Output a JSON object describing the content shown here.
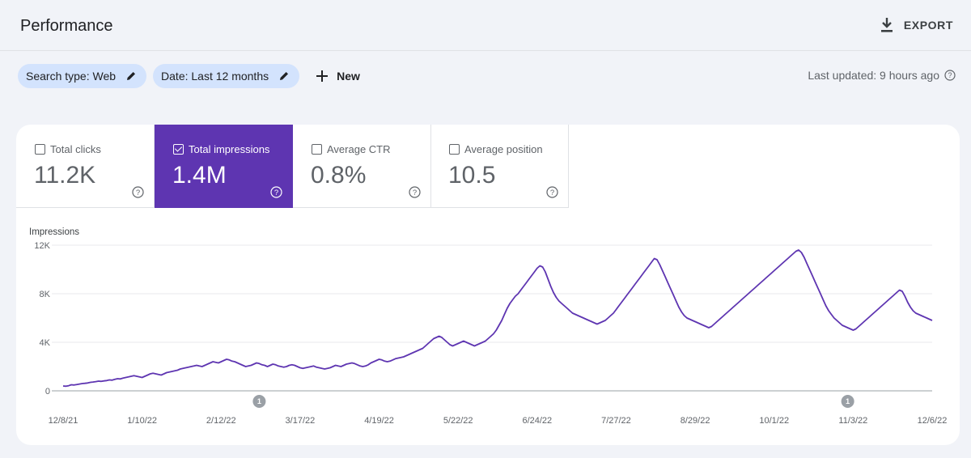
{
  "header": {
    "title": "Performance",
    "export_label": "EXPORT"
  },
  "filters": {
    "search_type": "Search type: Web",
    "date": "Date: Last 12 months",
    "new_label": "New"
  },
  "last_updated": "Last updated: 9 hours ago",
  "metrics": [
    {
      "label": "Total clicks",
      "value": "11.2K",
      "checked": false
    },
    {
      "label": "Total impressions",
      "value": "1.4M",
      "checked": true
    },
    {
      "label": "Average CTR",
      "value": "0.8%",
      "checked": false
    },
    {
      "label": "Average position",
      "value": "10.5",
      "checked": false
    }
  ],
  "colors": {
    "accent": "#5e35b1",
    "chip_bg": "#d3e3fd",
    "annotation": "#9aa0a6"
  },
  "chart_data": {
    "type": "line",
    "ylabel": "Impressions",
    "ylim": [
      0,
      12000
    ],
    "yticks": [
      "0",
      "4K",
      "8K",
      "12K"
    ],
    "xticks": [
      "12/8/21",
      "1/10/22",
      "2/12/22",
      "3/17/22",
      "4/19/22",
      "5/22/22",
      "6/24/22",
      "7/27/22",
      "8/29/22",
      "10/1/22",
      "11/3/22",
      "12/6/22"
    ],
    "annotations": [
      {
        "label": "1",
        "x_day": 72
      },
      {
        "label": "1",
        "x_day": 288
      }
    ],
    "series": [
      {
        "values": [
          400,
          380,
          420,
          500,
          480,
          520,
          560,
          600,
          620,
          650,
          700,
          730,
          760,
          800,
          780,
          820,
          850,
          900,
          880,
          950,
          1000,
          980,
          1050,
          1100,
          1150,
          1200,
          1250,
          1200,
          1150,
          1100,
          1200,
          1300,
          1400,
          1450,
          1400,
          1350,
          1300,
          1400,
          1500,
          1550,
          1600,
          1650,
          1700,
          1800,
          1850,
          1900,
          1950,
          2000,
          2050,
          2100,
          2050,
          2000,
          2100,
          2200,
          2300,
          2400,
          2350,
          2300,
          2400,
          2500,
          2600,
          2550,
          2450,
          2400,
          2300,
          2200,
          2100,
          2000,
          2050,
          2100,
          2200,
          2300,
          2250,
          2150,
          2100,
          2000,
          2100,
          2200,
          2150,
          2050,
          2000,
          1950,
          2000,
          2100,
          2150,
          2100,
          2000,
          1900,
          1850,
          1900,
          1950,
          2000,
          2050,
          1950,
          1900,
          1850,
          1800,
          1850,
          1900,
          2000,
          2100,
          2050,
          2000,
          2100,
          2200,
          2250,
          2300,
          2250,
          2150,
          2050,
          2000,
          2050,
          2150,
          2300,
          2400,
          2500,
          2600,
          2550,
          2450,
          2400,
          2450,
          2550,
          2650,
          2700,
          2750,
          2800,
          2900,
          3000,
          3100,
          3200,
          3300,
          3400,
          3500,
          3700,
          3900,
          4100,
          4300,
          4400,
          4500,
          4400,
          4200,
          4000,
          3800,
          3700,
          3800,
          3900,
          4000,
          4100,
          4000,
          3900,
          3800,
          3700,
          3800,
          3900,
          4000,
          4100,
          4300,
          4500,
          4700,
          5000,
          5400,
          5800,
          6300,
          6800,
          7200,
          7500,
          7800,
          8000,
          8300,
          8600,
          8900,
          9200,
          9500,
          9800,
          10100,
          10300,
          10200,
          9800,
          9200,
          8600,
          8100,
          7700,
          7400,
          7200,
          7000,
          6800,
          6600,
          6400,
          6300,
          6200,
          6100,
          6000,
          5900,
          5800,
          5700,
          5600,
          5500,
          5600,
          5700,
          5800,
          6000,
          6200,
          6400,
          6700,
          7000,
          7300,
          7600,
          7900,
          8200,
          8500,
          8800,
          9100,
          9400,
          9700,
          10000,
          10300,
          10600,
          10900,
          10800,
          10400,
          9900,
          9400,
          8900,
          8400,
          7900,
          7400,
          6900,
          6500,
          6200,
          6000,
          5900,
          5800,
          5700,
          5600,
          5500,
          5400,
          5300,
          5200,
          5300,
          5500,
          5700,
          5900,
          6100,
          6300,
          6500,
          6700,
          6900,
          7100,
          7300,
          7500,
          7700,
          7900,
          8100,
          8300,
          8500,
          8700,
          8900,
          9100,
          9300,
          9500,
          9700,
          9900,
          10100,
          10300,
          10500,
          10700,
          10900,
          11100,
          11300,
          11500,
          11600,
          11400,
          11000,
          10500,
          10000,
          9500,
          9000,
          8500,
          8000,
          7500,
          7000,
          6600,
          6300,
          6000,
          5800,
          5600,
          5400,
          5300,
          5200,
          5100,
          5000,
          5100,
          5300,
          5500,
          5700,
          5900,
          6100,
          6300,
          6500,
          6700,
          6900,
          7100,
          7300,
          7500,
          7700,
          7900,
          8100,
          8300,
          8200,
          7800,
          7300,
          6900,
          6600,
          6400,
          6300,
          6200,
          6100,
          6000,
          5900,
          5800
        ]
      }
    ]
  }
}
